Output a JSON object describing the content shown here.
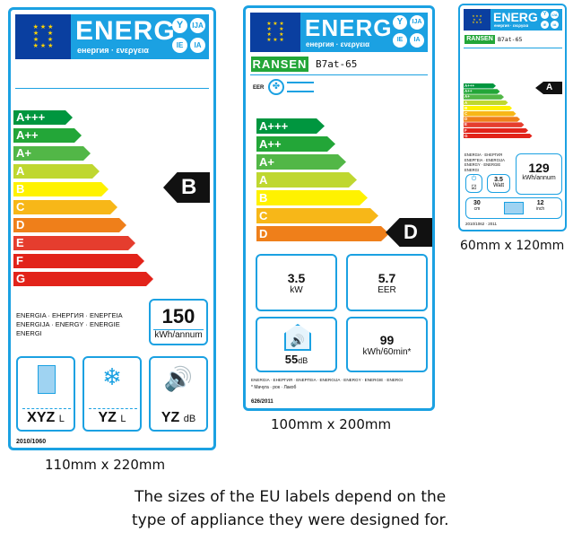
{
  "header": {
    "energ_word": "ENERG",
    "energ_sub": "енергия · ενεργεια",
    "circle_top_left": "Y",
    "circle_top_right": "IJA",
    "circle_bottom_left": "IE",
    "circle_bottom_right": "IA"
  },
  "classes": [
    "A+++",
    "A++",
    "A+",
    "A",
    "B",
    "C",
    "D",
    "E",
    "F",
    "G"
  ],
  "classes_100": [
    "A+++",
    "A++",
    "A+",
    "A",
    "B",
    "C",
    "D"
  ],
  "colors": {
    "frame": "#1ba1e2",
    "bars": [
      "#00963f",
      "#23a638",
      "#52b747",
      "#bfd730",
      "#fff200",
      "#f7b718",
      "#ef7f1a",
      "#e53d2e",
      "#e2231a",
      "#e2231a"
    ]
  },
  "label_large": {
    "rating": "B",
    "languages": "ENERGIA · ЕНЕРГИЯ · ΕΝΕΡΓΕΙΑ\nENERGIJA · ENERGY · ENERGIE\nENERGI",
    "consumption_value": "150",
    "consumption_unit": "kWh/annum",
    "volume_value": "XYZ",
    "volume_unit": "L",
    "freezer_value": "YZ",
    "freezer_unit": "L",
    "noise_value": "YZ",
    "noise_unit": "dB",
    "regulation": "2010/1060",
    "size_caption": "110mm x 220mm"
  },
  "label_medium": {
    "brand": "RANSEN",
    "model": "B7at-65",
    "eer_label": "EER",
    "rating": "D",
    "capacity_value": "3.5",
    "capacity_unit": "kW",
    "eer_value": "5.7",
    "eer_unit": "EER",
    "noise_value": "55",
    "noise_unit": "dB",
    "consumption_value": "99",
    "consumption_unit": "kWh/60min*",
    "languages": "ENERGIA · ЕНЕРГИЯ · ΕΝΕΡΓΕΙΑ · ENERGIJA · ENERGY · ENERGIE · ENERGI",
    "footnote": "* Мачуга · рок · Лакоб",
    "regulation": "626/2011",
    "size_caption": "100mm x 200mm"
  },
  "label_small": {
    "brand": "RANSEN",
    "model": "B7at-65",
    "rating": "A",
    "languages": "ENERGIA · ЕНЕРГИЯ\nΕΝΕΡΓΕΙΑ · ENERGIJA\nENERGY · ENERGIE\nENERGI",
    "consumption_value": "129",
    "consumption_unit": "kWh/annum",
    "power_value": "3.5",
    "power_unit": "Watt",
    "diag_value": "30",
    "diag_unit": "cm",
    "diag_inch_value": "12",
    "diag_inch_unit": "inch",
    "regulation": "2010/1062 · 2011",
    "size_caption": "60mm x 120mm"
  },
  "footer_text_line1": "The sizes of the EU labels depend on the",
  "footer_text_line2": "type of appliance they were designed for."
}
